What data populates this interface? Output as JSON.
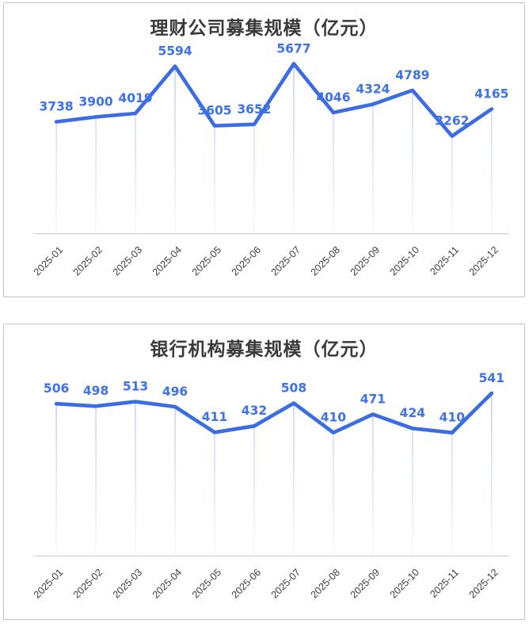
{
  "page": {
    "background": "#ffffff"
  },
  "colors": {
    "series_line": "#3c6ce4",
    "value_label": "#3e72e8",
    "drop_line_base": "60,108,228",
    "axis_line": "#d9d9d9",
    "title_text": "#3a3a3a",
    "month_label_text": "#3c3c3c",
    "panel_border": "#c3c3c3"
  },
  "chart_data": [
    {
      "type": "line",
      "title": "理财公司募集规模（亿元）",
      "categories": [
        "2025-01",
        "2025-02",
        "2025-03",
        "2025-04",
        "2025-05",
        "2025-06",
        "2025-07",
        "2025-08",
        "2025-09",
        "2025-10",
        "2025-11",
        "2025-12"
      ],
      "values": [
        3738,
        3900,
        4019,
        5594,
        3605,
        3652,
        5677,
        4046,
        4324,
        4789,
        3262,
        4165
      ],
      "xlabel": "",
      "ylabel": "",
      "ylim": [
        0,
        6000
      ],
      "grid": false,
      "legend": "none",
      "value_labels_shown": true,
      "x_tick_rotation_deg": -45
    },
    {
      "type": "line",
      "title": "银行机构募集规模（亿元）",
      "categories": [
        "2025-01",
        "2025-02",
        "2025-03",
        "2025-04",
        "2025-05",
        "2025-06",
        "2025-07",
        "2025-08",
        "2025-09",
        "2025-10",
        "2025-11",
        "2025-12"
      ],
      "values": [
        506,
        498,
        513,
        496,
        411,
        432,
        508,
        410,
        471,
        424,
        410,
        541
      ],
      "xlabel": "",
      "ylabel": "",
      "ylim": [
        0,
        600
      ],
      "grid": false,
      "legend": "none",
      "value_labels_shown": true,
      "x_tick_rotation_deg": -45
    }
  ]
}
